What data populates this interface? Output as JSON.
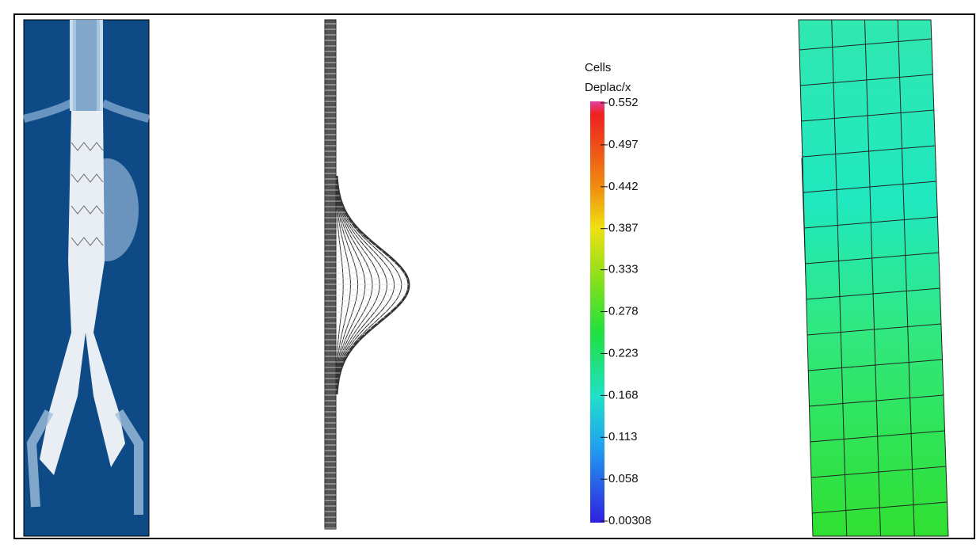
{
  "legend": {
    "title": "Cells",
    "subtitle": "Deplac/x",
    "ticks": [
      0.552,
      0.497,
      0.442,
      0.387,
      0.333,
      0.278,
      0.223,
      0.168,
      0.113,
      0.058,
      0.00308
    ],
    "range": [
      0.00308,
      0.552
    ]
  }
}
